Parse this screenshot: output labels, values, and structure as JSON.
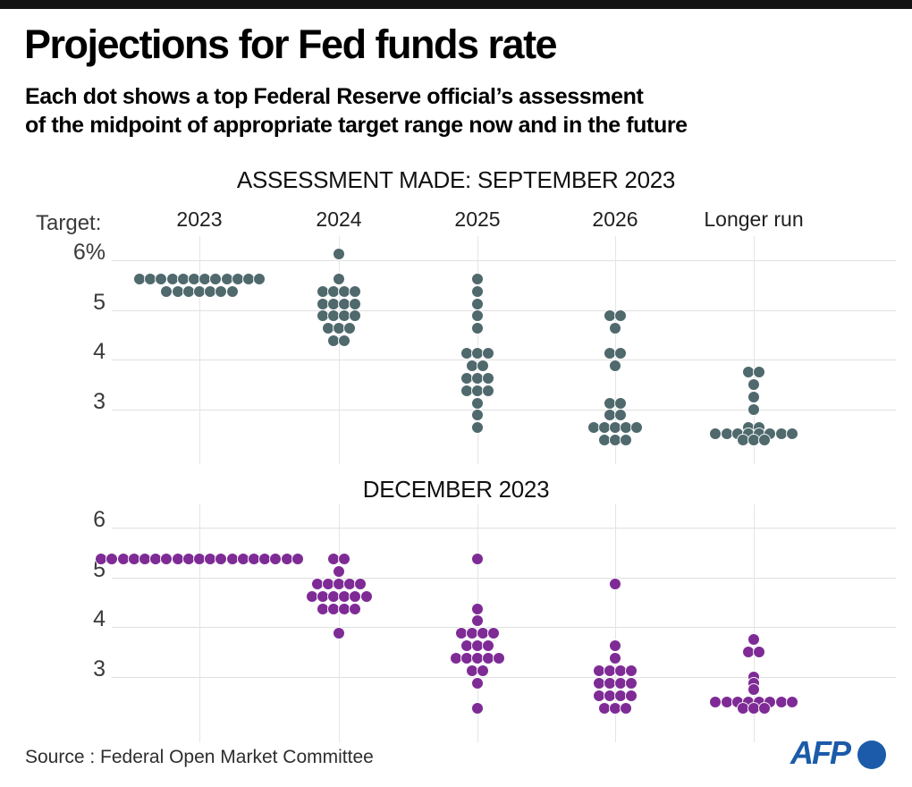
{
  "page": {
    "title": "Projections for Fed funds rate",
    "subtitle_line1": "Each dot shows a top Federal Reserve official’s assessment",
    "subtitle_line2": "of the midpoint of appropriate target range now and in the future",
    "source": "Source : Federal Open Market Committee",
    "brand": "AFP"
  },
  "colors": {
    "september_dots": "#4f696d",
    "december_dots": "#7e2b96",
    "gridline": "#e0e0e0",
    "afp_blue": "#1b5ba9",
    "topbar": "#141414"
  },
  "chart_data": {
    "type": "dot-plot",
    "target_axis_label": "Target:",
    "top_tick_unit": "%",
    "columns": [
      "2023",
      "2024",
      "2025",
      "2026",
      "Longer run"
    ],
    "panels": [
      {
        "title": "ASSESSMENT MADE: SEPTEMBER 2023",
        "color": "#4f696d",
        "show_column_headers": true,
        "y_ticks": [
          {
            "value": 6,
            "label": "6%"
          },
          {
            "value": 5,
            "label": "5"
          },
          {
            "value": 4,
            "label": "4"
          },
          {
            "value": 3,
            "label": "3"
          }
        ],
        "columns": [
          {
            "label": "2023",
            "dots": [
              {
                "rate": 5.625,
                "count": 12
              },
              {
                "rate": 5.375,
                "count": 7
              }
            ]
          },
          {
            "label": "2024",
            "dots": [
              {
                "rate": 6.125,
                "count": 1
              },
              {
                "rate": 5.625,
                "count": 1
              },
              {
                "rate": 5.375,
                "count": 4
              },
              {
                "rate": 5.125,
                "count": 4
              },
              {
                "rate": 4.875,
                "count": 4
              },
              {
                "rate": 4.625,
                "count": 3
              },
              {
                "rate": 4.375,
                "count": 2
              }
            ]
          },
          {
            "label": "2025",
            "dots": [
              {
                "rate": 5.625,
                "count": 1
              },
              {
                "rate": 5.375,
                "count": 1
              },
              {
                "rate": 5.125,
                "count": 1
              },
              {
                "rate": 4.875,
                "count": 1
              },
              {
                "rate": 4.625,
                "count": 1
              },
              {
                "rate": 4.125,
                "count": 3
              },
              {
                "rate": 3.875,
                "count": 2
              },
              {
                "rate": 3.625,
                "count": 3
              },
              {
                "rate": 3.375,
                "count": 3
              },
              {
                "rate": 3.125,
                "count": 1
              },
              {
                "rate": 2.875,
                "count": 1
              },
              {
                "rate": 2.625,
                "count": 1
              }
            ]
          },
          {
            "label": "2026",
            "dots": [
              {
                "rate": 4.875,
                "count": 2
              },
              {
                "rate": 4.625,
                "count": 1
              },
              {
                "rate": 4.125,
                "count": 2
              },
              {
                "rate": 3.875,
                "count": 1
              },
              {
                "rate": 3.125,
                "count": 2
              },
              {
                "rate": 2.875,
                "count": 2
              },
              {
                "rate": 2.625,
                "count": 5
              },
              {
                "rate": 2.375,
                "count": 3
              }
            ]
          },
          {
            "label": "Longer run",
            "dots": [
              {
                "rate": 3.75,
                "count": 2
              },
              {
                "rate": 3.5,
                "count": 1
              },
              {
                "rate": 3.25,
                "count": 1
              },
              {
                "rate": 3.0,
                "count": 1
              },
              {
                "rate": 2.625,
                "count": 2
              },
              {
                "rate": 2.5,
                "count": 8
              },
              {
                "rate": 2.375,
                "count": 3
              }
            ]
          }
        ]
      },
      {
        "title": "DECEMBER 2023",
        "color": "#7e2b96",
        "show_column_headers": false,
        "y_ticks": [
          {
            "value": 6,
            "label": "6"
          },
          {
            "value": 5,
            "label": "5"
          },
          {
            "value": 4,
            "label": "4"
          },
          {
            "value": 3,
            "label": "3"
          }
        ],
        "columns": [
          {
            "label": "2023",
            "dots": [
              {
                "rate": 5.375,
                "count": 19
              }
            ]
          },
          {
            "label": "2024",
            "dots": [
              {
                "rate": 5.375,
                "count": 2
              },
              {
                "rate": 5.125,
                "count": 1
              },
              {
                "rate": 4.875,
                "count": 5
              },
              {
                "rate": 4.625,
                "count": 6
              },
              {
                "rate": 4.375,
                "count": 4
              },
              {
                "rate": 3.875,
                "count": 1
              }
            ]
          },
          {
            "label": "2025",
            "dots": [
              {
                "rate": 5.375,
                "count": 1
              },
              {
                "rate": 4.375,
                "count": 1
              },
              {
                "rate": 4.125,
                "count": 1
              },
              {
                "rate": 3.875,
                "count": 4
              },
              {
                "rate": 3.625,
                "count": 3
              },
              {
                "rate": 3.375,
                "count": 5
              },
              {
                "rate": 3.125,
                "count": 2
              },
              {
                "rate": 2.875,
                "count": 1
              },
              {
                "rate": 2.375,
                "count": 1
              }
            ]
          },
          {
            "label": "2026",
            "dots": [
              {
                "rate": 4.875,
                "count": 1
              },
              {
                "rate": 3.625,
                "count": 1
              },
              {
                "rate": 3.375,
                "count": 1
              },
              {
                "rate": 3.125,
                "count": 4
              },
              {
                "rate": 2.875,
                "count": 4
              },
              {
                "rate": 2.625,
                "count": 4
              },
              {
                "rate": 2.375,
                "count": 3
              }
            ]
          },
          {
            "label": "Longer run",
            "dots": [
              {
                "rate": 3.75,
                "count": 1
              },
              {
                "rate": 3.5,
                "count": 2
              },
              {
                "rate": 3.0,
                "count": 1
              },
              {
                "rate": 2.875,
                "count": 1
              },
              {
                "rate": 2.75,
                "count": 1
              },
              {
                "rate": 2.5,
                "count": 8
              },
              {
                "rate": 2.375,
                "count": 3
              }
            ]
          }
        ]
      }
    ]
  }
}
